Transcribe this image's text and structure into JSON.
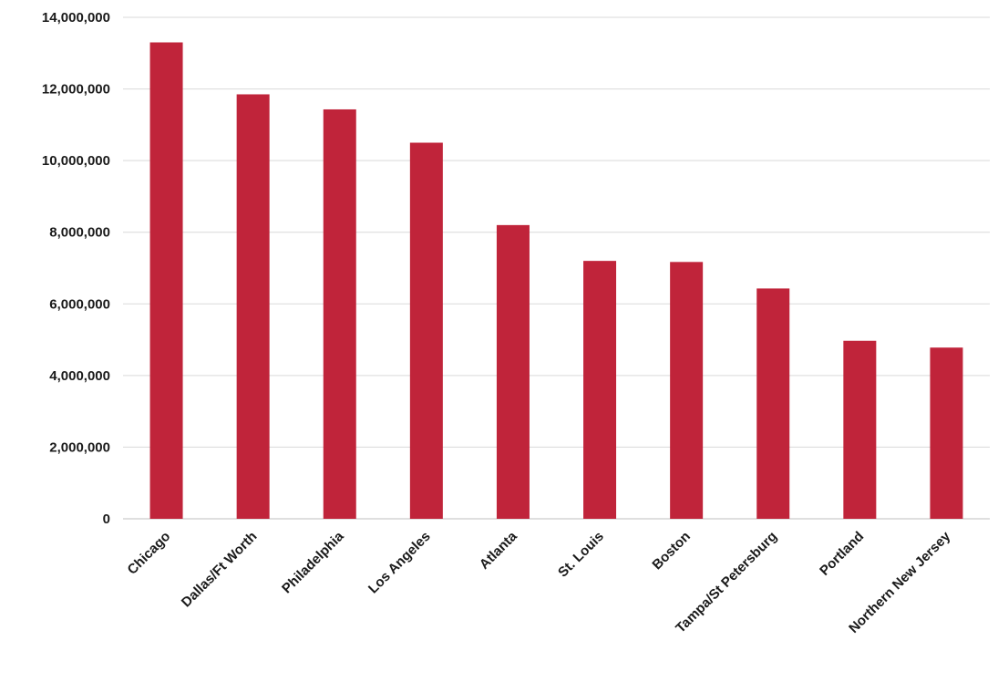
{
  "chart_data": {
    "type": "bar",
    "title": "",
    "xlabel": "",
    "ylabel": "",
    "categories": [
      "Chicago",
      "Dallas/Ft Worth",
      "Philadelphia",
      "Los Angeles",
      "Atlanta",
      "St. Louis",
      "Boston",
      "Tampa/St Petersburg",
      "Portland",
      "Northern New Jersey"
    ],
    "values": [
      13300000,
      11850000,
      11430000,
      10500000,
      8200000,
      7200000,
      7170000,
      6430000,
      4970000,
      4780000
    ],
    "ylim": [
      0,
      14000000
    ],
    "yticks": [
      0,
      2000000,
      4000000,
      6000000,
      8000000,
      10000000,
      12000000,
      14000000
    ],
    "ytick_labels": [
      "0",
      "2,000,000",
      "4,000,000",
      "6,000,000",
      "8,000,000",
      "10,000,000",
      "12,000,000",
      "14,000,000"
    ],
    "grid": true,
    "legend": "none",
    "bar_color": "#c0243a"
  }
}
